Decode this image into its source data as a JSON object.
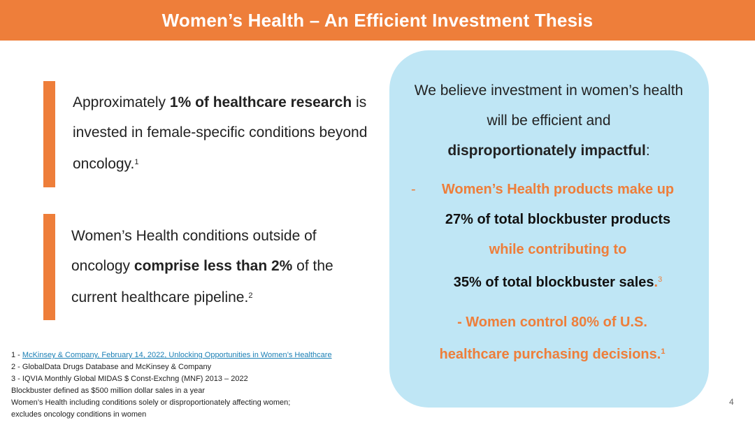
{
  "title": "Women’s Health – An Efficient Investment Thesis",
  "stat1": {
    "pre": "Approximately ",
    "bold": "1% of healthcare research",
    "post": " is invested in female-specific conditions beyond oncology.",
    "ref": "1"
  },
  "stat2": {
    "pre": "Women’s Health conditions outside of oncology ",
    "bold": "comprise less than 2%",
    "post": " of the current healthcare pipeline.",
    "ref": "2"
  },
  "thesis": {
    "intro_line1": "We believe investment in women’s health",
    "intro_line2": "will be efficient and",
    "intro_bold": "disproportionately impactful",
    "intro_colon": ":",
    "point1": {
      "dash": "-",
      "line1": "Women’s Health products make up",
      "line2": "27% of total blockbuster products",
      "line3": "while contributing to",
      "line4": "35% of total blockbuster sales",
      "period": ".",
      "ref": "3"
    },
    "point2": {
      "line1": "- Women control 80% of U.S.",
      "line2": "healthcare purchasing decisions.",
      "ref": "1"
    }
  },
  "footnotes": {
    "fn1_prefix": "1 - ",
    "fn1_link": "McKinsey & Company, February 14, 2022, Unlocking Opportunities in Women’s Healthcare",
    "fn2": "2 - GlobalData Drugs Database and McKinsey & Company",
    "fn3": "3 - IQVIA Monthly Global MIDAS $ Const-Exchng (MNF) 2013 – 2022",
    "note1": "Blockbuster defined as $500 million dollar sales in a year",
    "note2": "Women’s Health including conditions solely or disproportionately affecting women;",
    "note3": "excludes oncology conditions in women"
  },
  "page_number": "4",
  "colors": {
    "accent": "#ee7e3a",
    "panel": "#bfe6f5",
    "link": "#1a7fb5"
  }
}
